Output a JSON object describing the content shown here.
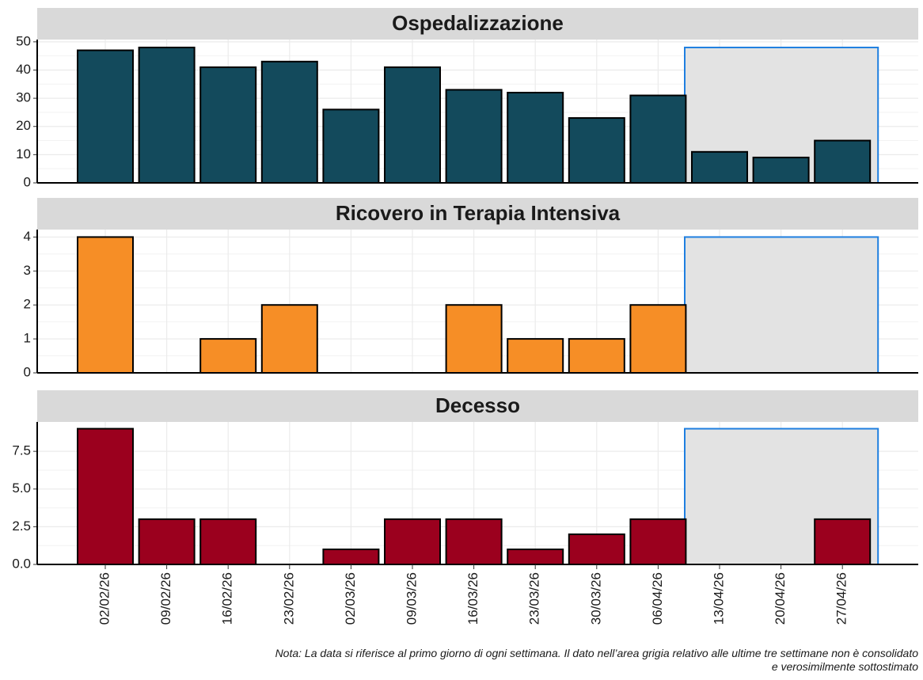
{
  "chart_data": [
    {
      "type": "bar",
      "title": "Ospedalizzazione",
      "values": [
        47,
        48,
        41,
        43,
        26,
        41,
        33,
        32,
        23,
        31,
        11,
        9,
        15
      ],
      "color": "#134a5c",
      "ylim": [
        0,
        50.8
      ],
      "yticks": [
        0,
        10,
        20,
        30,
        40,
        50
      ],
      "grid": true,
      "shaded_last": 3
    },
    {
      "type": "bar",
      "title": "Ricovero in Terapia Intensiva",
      "values": [
        4,
        0,
        1,
        2,
        0,
        0,
        2,
        1,
        1,
        2,
        0,
        0,
        0
      ],
      "color": "#f68e26",
      "ylim": [
        0,
        4.22
      ],
      "yticks": [
        0,
        1,
        2,
        3,
        4
      ],
      "grid": true,
      "shaded_last": 3
    },
    {
      "type": "bar",
      "title": "Decesso",
      "values": [
        9,
        3,
        3,
        0,
        1,
        3,
        3,
        1,
        2,
        3,
        0,
        0,
        3
      ],
      "color": "#9b001e",
      "ylim": [
        0,
        9.45
      ],
      "yticks": [
        {
          "value": 0,
          "label": "0.0"
        },
        {
          "value": 2.5,
          "label": "2.5"
        },
        {
          "value": 5,
          "label": "5.0"
        },
        {
          "value": 7.5,
          "label": "7.5"
        }
      ],
      "grid": true,
      "shaded_last": 3,
      "categories": [
        "02/02/26",
        "09/02/26",
        "16/02/26",
        "23/02/26",
        "02/03/26",
        "09/03/26",
        "16/03/26",
        "23/03/26",
        "30/03/26",
        "06/04/26",
        "13/04/26",
        "20/04/26",
        "27/04/26"
      ]
    }
  ],
  "note": [
    "Nota: La data si riferisce al primo giorno di ogni settimana. Il dato nell’area grigia relativo alle ultime tre settimane non è consolidato",
    "e verosimilmente sottostimato"
  ]
}
